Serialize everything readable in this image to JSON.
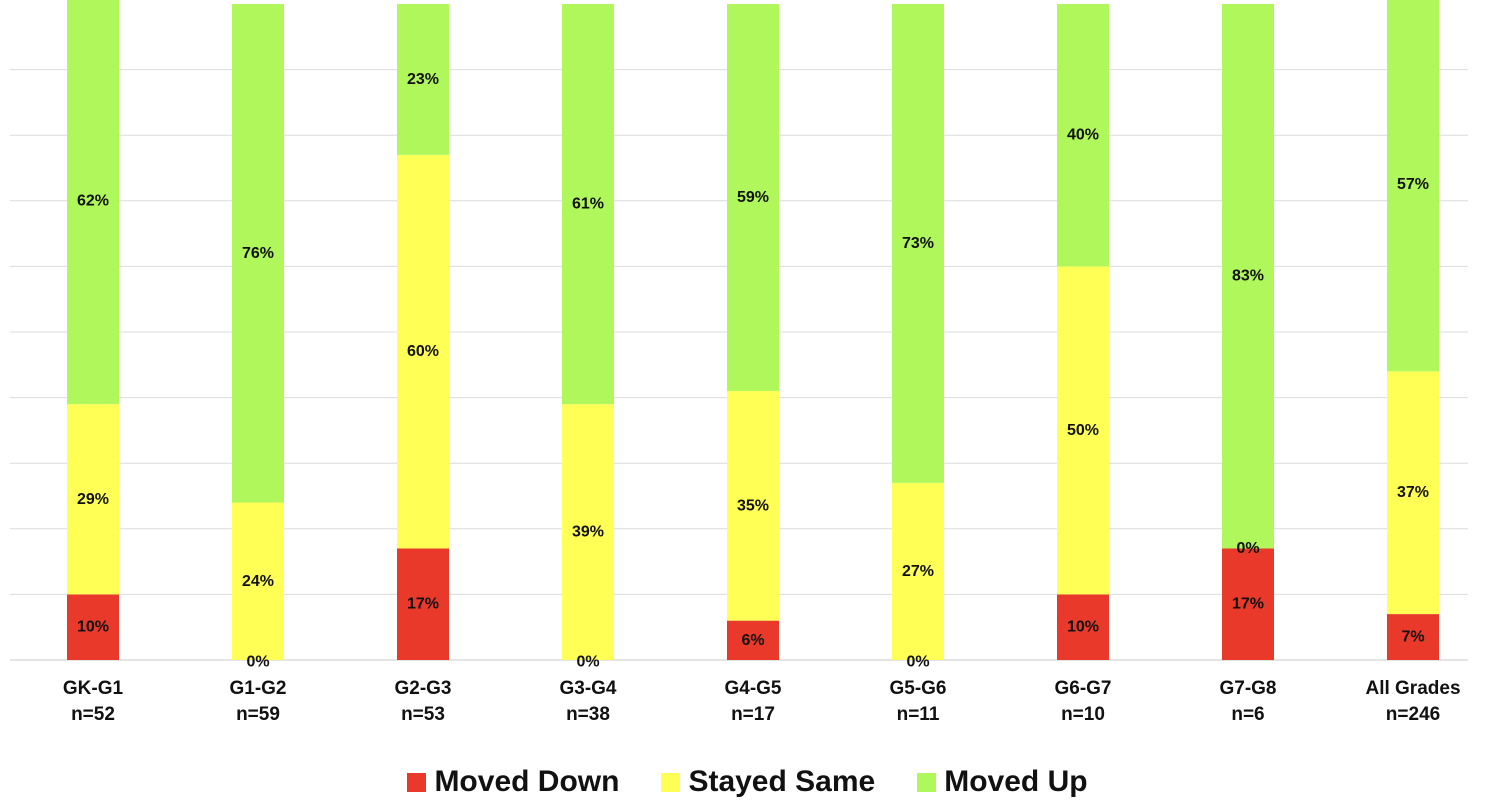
{
  "chart_data": {
    "type": "bar",
    "stacked": true,
    "categories": [
      "GK-G1",
      "G1-G2",
      "G2-G3",
      "G3-G4",
      "G4-G5",
      "G5-G6",
      "G6-G7",
      "G7-G8",
      "All Grades"
    ],
    "sample_sizes": [
      "n=52",
      "n=59",
      "n=53",
      "n=38",
      "n=17",
      "n=11",
      "n=10",
      "n=6",
      "n=246"
    ],
    "series": [
      {
        "name": "Moved Down",
        "color": "#e8392a",
        "values": [
          10,
          0,
          17,
          0,
          6,
          0,
          10,
          17,
          7
        ],
        "labels": [
          "10%",
          "0%",
          "17%",
          "0%",
          "6%",
          "0%",
          "10%",
          "17%",
          "7%"
        ]
      },
      {
        "name": "Stayed Same",
        "color": "#ffff55",
        "values": [
          29,
          24,
          60,
          39,
          35,
          27,
          50,
          0,
          37
        ],
        "labels": [
          "29%",
          "24%",
          "60%",
          "39%",
          "35%",
          "27%",
          "50%",
          "0%",
          "37%"
        ]
      },
      {
        "name": "Moved Up",
        "color": "#b0f75c",
        "values": [
          62,
          76,
          23,
          61,
          59,
          73,
          40,
          83,
          57
        ],
        "labels": [
          "62%",
          "76%",
          "23%",
          "61%",
          "59%",
          "73%",
          "40%",
          "83%",
          "57%"
        ]
      }
    ],
    "ylim": [
      0,
      100
    ],
    "grid": true,
    "legend_position": "bottom",
    "title": "",
    "xlabel": "",
    "ylabel": ""
  }
}
